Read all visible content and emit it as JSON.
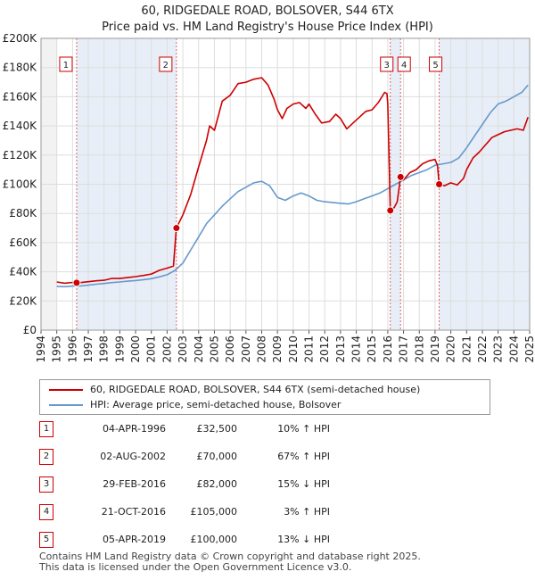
{
  "title": {
    "line1": "60, RIDGEDALE ROAD, BOLSOVER, S44 6TX",
    "line2": "Price paid vs. HM Land Registry's House Price Index (HPI)"
  },
  "chart_data": {
    "type": "line",
    "xlim": [
      1994,
      2025
    ],
    "ylim": [
      0,
      200000
    ],
    "y_ticks": [
      {
        "value": 0,
        "label": "£0"
      },
      {
        "value": 20000,
        "label": "£20K"
      },
      {
        "value": 40000,
        "label": "£40K"
      },
      {
        "value": 60000,
        "label": "£60K"
      },
      {
        "value": 80000,
        "label": "£80K"
      },
      {
        "value": 100000,
        "label": "£100K"
      },
      {
        "value": 120000,
        "label": "£120K"
      },
      {
        "value": 140000,
        "label": "£140K"
      },
      {
        "value": 160000,
        "label": "£160K"
      },
      {
        "value": 180000,
        "label": "£180K"
      },
      {
        "value": 200000,
        "label": "£200K"
      }
    ],
    "x_ticks": [
      "1994",
      "1995",
      "1996",
      "1997",
      "1998",
      "1999",
      "2000",
      "2001",
      "2002",
      "2003",
      "2004",
      "2005",
      "2006",
      "2007",
      "2008",
      "2009",
      "2010",
      "2011",
      "2012",
      "2013",
      "2014",
      "2015",
      "2016",
      "2017",
      "2018",
      "2019",
      "2020",
      "2021",
      "2022",
      "2023",
      "2024",
      "2025"
    ],
    "grid": true,
    "series": [
      {
        "name": "60, RIDGEDALE ROAD, BOLSOVER, S44 6TX (semi-detached house)",
        "color": "#cc0000",
        "points": [
          [
            1995.0,
            33000
          ],
          [
            1995.5,
            32200
          ],
          [
            1996.0,
            32700
          ],
          [
            1996.26,
            32500
          ],
          [
            1996.5,
            32600
          ],
          [
            1997.0,
            33200
          ],
          [
            1997.5,
            33800
          ],
          [
            1998.0,
            34200
          ],
          [
            1998.5,
            35500
          ],
          [
            1999.0,
            35400
          ],
          [
            1999.5,
            36000
          ],
          [
            2000.0,
            36700
          ],
          [
            2000.5,
            37500
          ],
          [
            2001.0,
            38500
          ],
          [
            2001.5,
            41000
          ],
          [
            2002.0,
            42500
          ],
          [
            2002.4,
            44000
          ],
          [
            2002.59,
            70000
          ],
          [
            2003.0,
            79000
          ],
          [
            2003.5,
            93000
          ],
          [
            2004.0,
            112000
          ],
          [
            2004.5,
            130000
          ],
          [
            2004.7,
            140000
          ],
          [
            2005.0,
            137000
          ],
          [
            2005.5,
            157000
          ],
          [
            2006.0,
            161000
          ],
          [
            2006.5,
            169000
          ],
          [
            2007.0,
            170000
          ],
          [
            2007.5,
            172000
          ],
          [
            2008.0,
            173000
          ],
          [
            2008.4,
            168000
          ],
          [
            2008.8,
            158000
          ],
          [
            2009.0,
            151000
          ],
          [
            2009.3,
            145000
          ],
          [
            2009.6,
            152000
          ],
          [
            2010.0,
            155000
          ],
          [
            2010.4,
            156000
          ],
          [
            2010.8,
            152000
          ],
          [
            2011.0,
            155000
          ],
          [
            2011.4,
            148000
          ],
          [
            2011.8,
            142000
          ],
          [
            2012.3,
            143000
          ],
          [
            2012.7,
            148000
          ],
          [
            2013.0,
            145000
          ],
          [
            2013.4,
            138000
          ],
          [
            2013.8,
            142000
          ],
          [
            2014.2,
            146000
          ],
          [
            2014.6,
            150000
          ],
          [
            2015.0,
            151000
          ],
          [
            2015.4,
            156000
          ],
          [
            2015.8,
            163000
          ],
          [
            2015.95,
            162000
          ],
          [
            2016.0,
            155000
          ],
          [
            2016.16,
            82000
          ],
          [
            2016.4,
            84000
          ],
          [
            2016.6,
            88000
          ],
          [
            2016.81,
            105000
          ],
          [
            2017.0,
            103000
          ],
          [
            2017.4,
            108000
          ],
          [
            2017.8,
            110000
          ],
          [
            2018.2,
            114000
          ],
          [
            2018.6,
            116000
          ],
          [
            2019.0,
            117000
          ],
          [
            2019.15,
            113000
          ],
          [
            2019.26,
            100000
          ],
          [
            2019.6,
            99000
          ],
          [
            2020.0,
            101000
          ],
          [
            2020.4,
            99500
          ],
          [
            2020.8,
            104000
          ],
          [
            2021.0,
            110000
          ],
          [
            2021.4,
            118000
          ],
          [
            2021.8,
            122000
          ],
          [
            2022.2,
            127000
          ],
          [
            2022.6,
            132000
          ],
          [
            2023.0,
            134000
          ],
          [
            2023.4,
            136000
          ],
          [
            2023.8,
            137000
          ],
          [
            2024.2,
            138000
          ],
          [
            2024.6,
            137000
          ],
          [
            2024.9,
            146000
          ]
        ]
      },
      {
        "name": "HPI: Average price, semi-detached house, Bolsover",
        "color": "#6699cc",
        "points": [
          [
            1995.0,
            30000
          ],
          [
            1995.5,
            29800
          ],
          [
            1996.0,
            30200
          ],
          [
            1996.5,
            30300
          ],
          [
            1997.0,
            30800
          ],
          [
            1997.5,
            31500
          ],
          [
            1998.0,
            32000
          ],
          [
            1998.5,
            32600
          ],
          [
            1999.0,
            33000
          ],
          [
            1999.5,
            33600
          ],
          [
            2000.0,
            34000
          ],
          [
            2000.5,
            34600
          ],
          [
            2001.0,
            35300
          ],
          [
            2001.5,
            36500
          ],
          [
            2002.0,
            38000
          ],
          [
            2002.5,
            41000
          ],
          [
            2003.0,
            46000
          ],
          [
            2003.5,
            55000
          ],
          [
            2004.0,
            64000
          ],
          [
            2004.5,
            73000
          ],
          [
            2005.0,
            79000
          ],
          [
            2005.5,
            85000
          ],
          [
            2006.0,
            90000
          ],
          [
            2006.5,
            95000
          ],
          [
            2007.0,
            98000
          ],
          [
            2007.5,
            101000
          ],
          [
            2008.0,
            102000
          ],
          [
            2008.5,
            99000
          ],
          [
            2009.0,
            91000
          ],
          [
            2009.5,
            89000
          ],
          [
            2010.0,
            92000
          ],
          [
            2010.5,
            94000
          ],
          [
            2011.0,
            92000
          ],
          [
            2011.5,
            89000
          ],
          [
            2012.0,
            88000
          ],
          [
            2012.5,
            87500
          ],
          [
            2013.0,
            87000
          ],
          [
            2013.5,
            86500
          ],
          [
            2014.0,
            88000
          ],
          [
            2014.5,
            90000
          ],
          [
            2015.0,
            92000
          ],
          [
            2015.5,
            94000
          ],
          [
            2016.0,
            97000
          ],
          [
            2016.5,
            100000
          ],
          [
            2017.0,
            103000
          ],
          [
            2017.5,
            106000
          ],
          [
            2018.0,
            108000
          ],
          [
            2018.5,
            110000
          ],
          [
            2019.0,
            113000
          ],
          [
            2019.5,
            114000
          ],
          [
            2020.0,
            115000
          ],
          [
            2020.5,
            118000
          ],
          [
            2021.0,
            125000
          ],
          [
            2021.5,
            133000
          ],
          [
            2022.0,
            141000
          ],
          [
            2022.5,
            149000
          ],
          [
            2023.0,
            155000
          ],
          [
            2023.5,
            157000
          ],
          [
            2024.0,
            160000
          ],
          [
            2024.5,
            163000
          ],
          [
            2024.9,
            168000
          ]
        ]
      }
    ],
    "sales": [
      {
        "num": "1",
        "x": 1996.26,
        "price": 32500,
        "date": "04-APR-1996",
        "price_label": "£32,500",
        "hpi": "10% ↑ HPI"
      },
      {
        "num": "2",
        "x": 2002.59,
        "price": 70000,
        "date": "02-AUG-2002",
        "price_label": "£70,000",
        "hpi": "67% ↑ HPI"
      },
      {
        "num": "3",
        "x": 2016.16,
        "price": 82000,
        "date": "29-FEB-2016",
        "price_label": "£82,000",
        "hpi": "15% ↓ HPI"
      },
      {
        "num": "4",
        "x": 2016.81,
        "price": 105000,
        "date": "21-OCT-2016",
        "price_label": "£105,000",
        "hpi": "3% ↑ HPI"
      },
      {
        "num": "5",
        "x": 2019.26,
        "price": 100000,
        "date": "05-APR-2019",
        "price_label": "£100,000",
        "hpi": "13% ↓ HPI"
      }
    ]
  },
  "legend": {
    "property_label": "60, RIDGEDALE ROAD, BOLSOVER, S44 6TX (semi-detached house)",
    "hpi_label": "HPI: Average price, semi-detached house, Bolsover"
  },
  "footer": {
    "line1": "Contains HM Land Registry data © Crown copyright and database right 2025.",
    "line2": "This data is licensed under the Open Government Licence v3.0."
  },
  "colors": {
    "property": "#cc0000",
    "hpi": "#6699cc",
    "grid": "#dddddd",
    "band": "#e8eef7"
  }
}
